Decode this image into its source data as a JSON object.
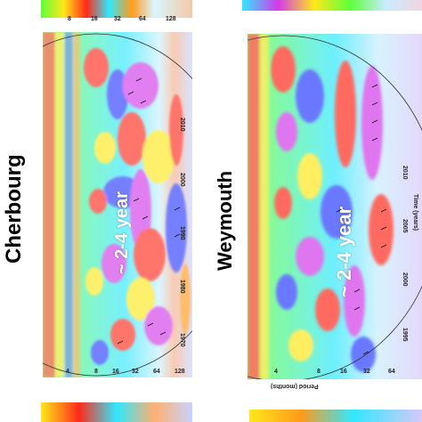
{
  "panels": {
    "cherbourg": {
      "title": "Cherbourg",
      "annotation": "~ 2-4 year",
      "period_ticks": [
        "4",
        "8",
        "16",
        "32",
        "64",
        "128"
      ],
      "time_ticks": [
        "1970",
        "1980",
        "1990",
        "2000",
        "2010"
      ]
    },
    "weymouth": {
      "title": "Weymouth",
      "annotation": "~ 2-4 year",
      "period_ticks": [
        "4",
        "8",
        "16",
        "32",
        "64"
      ],
      "time_ticks": [
        "1995",
        "2000",
        "2005",
        "2010"
      ],
      "time_axis_label": "Time (years)",
      "period_axis_label": "Period (months)"
    },
    "top_left_strip": {
      "period_ticks": [
        "8",
        "16",
        "32",
        "64",
        "128"
      ]
    }
  },
  "colors": {
    "red": "#ff2a1a",
    "orange": "#ff9a1a",
    "yellow": "#ffe81a",
    "green": "#5dff3a",
    "cyan": "#30e8ff",
    "blue": "#2a3dff",
    "magenta": "#d23ae8",
    "background": "#ffffff"
  }
}
